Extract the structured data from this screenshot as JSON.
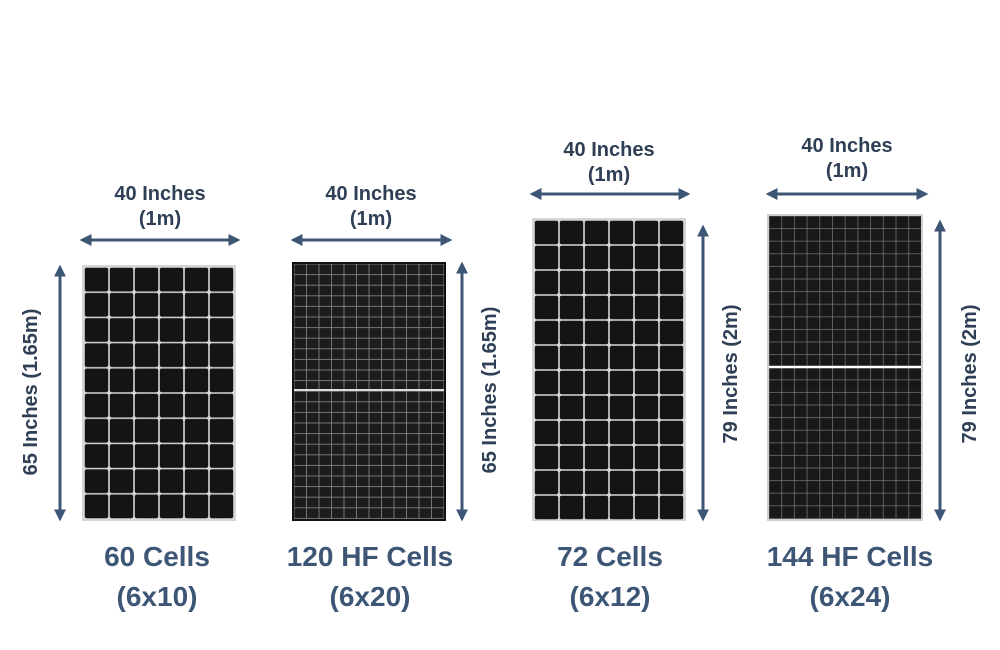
{
  "panels": [
    {
      "width_label": "40 Inches",
      "width_metric": "(1m)",
      "height_label": "65 Inches (1.65m)",
      "name": "60 Cells",
      "layout": "(6x10)"
    },
    {
      "width_label": "40 Inches",
      "width_metric": "(1m)",
      "height_label": "65 Inches (1.65m)",
      "name": "120 HF Cells",
      "layout": "(6x20)"
    },
    {
      "width_label": "40 Inches",
      "width_metric": "(1m)",
      "height_label": "79 Inches (2m)",
      "name": "72 Cells",
      "layout": "(6x12)"
    },
    {
      "width_label": "40 Inches",
      "width_metric": "(1m)",
      "height_label": "79 Inches (2m)",
      "name": "144 HF Cells",
      "layout": "(6x24)"
    }
  ]
}
